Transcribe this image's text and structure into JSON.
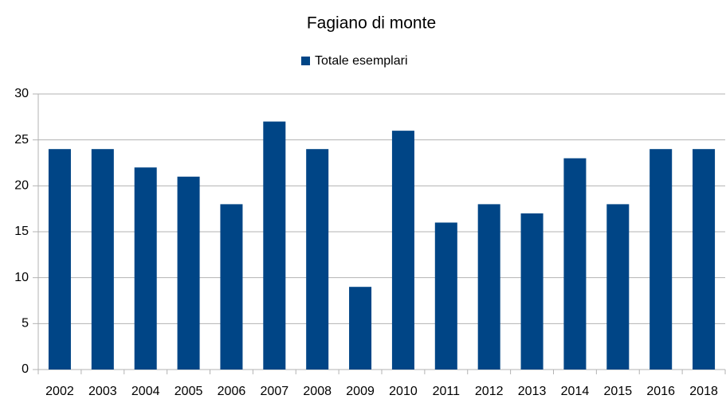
{
  "chart_data": {
    "type": "bar",
    "title": "Fagiano di monte",
    "categories": [
      "2002",
      "2003",
      "2004",
      "2005",
      "2006",
      "2007",
      "2008",
      "2009",
      "2010",
      "2011",
      "2012",
      "2013",
      "2014",
      "2015",
      "2016",
      "2018"
    ],
    "series": [
      {
        "name": "Totale esemplari",
        "color": "#004586",
        "values": [
          24,
          24,
          22,
          21,
          18,
          27,
          24,
          9,
          26,
          16,
          18,
          17,
          23,
          18,
          24,
          24
        ]
      }
    ],
    "ylim": [
      0,
      30
    ],
    "yticks": [
      0,
      5,
      10,
      15,
      20,
      25,
      30
    ],
    "grid": true,
    "legend": "top"
  }
}
